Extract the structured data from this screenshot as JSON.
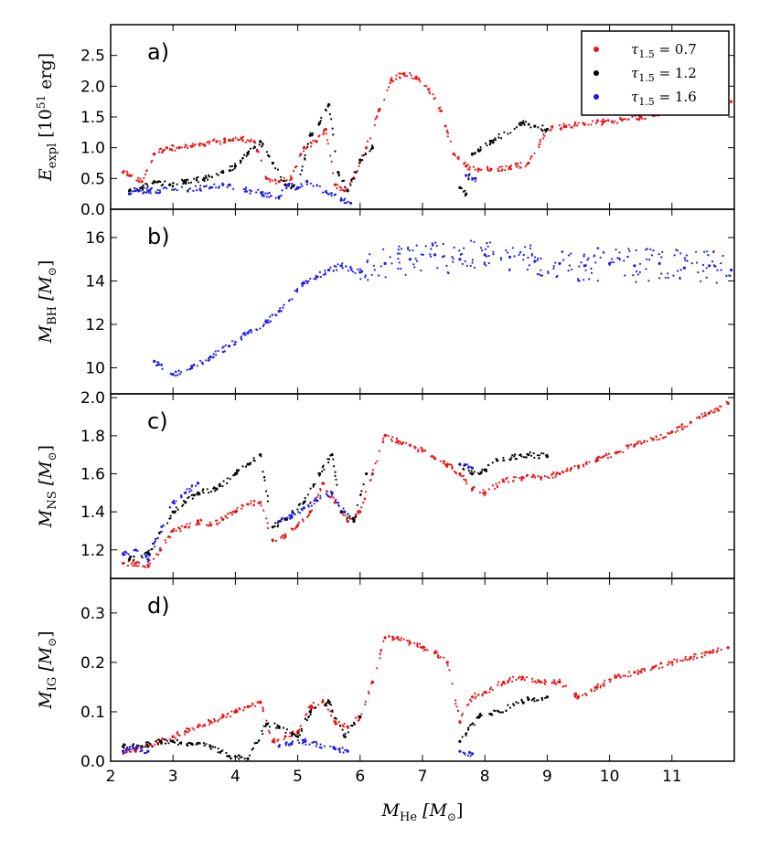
{
  "figure": {
    "x_axis": {
      "label": "M",
      "label_sub": "He",
      "label_unit": "[M",
      "label_unit_sub": "⊙",
      "label_close": "]",
      "range": [
        2,
        12
      ],
      "ticks": [
        2,
        3,
        4,
        5,
        6,
        7,
        8,
        9,
        10,
        11
      ],
      "tick_labels": [
        "2",
        "3",
        "4",
        "5",
        "6",
        "7",
        "8",
        "9",
        "10",
        "11"
      ]
    },
    "legend": {
      "placement": "top-right (panel a)",
      "entries": [
        {
          "name": "τ",
          "sub": "1.5",
          "eq": " = 0.7",
          "color": "#ee1111"
        },
        {
          "name": "τ",
          "sub": "1.5",
          "eq": " = 1.2",
          "color": "#000000"
        },
        {
          "name": "τ",
          "sub": "1.5",
          "eq": " = 1.6",
          "color": "#1a1aee"
        }
      ]
    }
  },
  "chart_data": [
    {
      "type": "scatter",
      "panel_label": "a)",
      "ylabel": "E",
      "ylabel_sub": "expl",
      "ylabel_unit": "[10",
      "ylabel_sup": "51",
      "ylabel_unit2": " erg]",
      "xlim": [
        2,
        12
      ],
      "ylim": [
        0,
        3.0
      ],
      "yticks": [
        0.0,
        0.5,
        1.0,
        1.5,
        2.0,
        2.5
      ],
      "ytick_labels": [
        "0.0",
        "0.5",
        "1.0",
        "1.5",
        "2.0",
        "2.5"
      ],
      "series": [
        {
          "name": "τ1.5 = 0.7",
          "color": "#ee1111",
          "x": [
            2.2,
            2.3,
            2.5,
            2.7,
            2.9,
            3.1,
            3.3,
            3.5,
            3.7,
            3.9,
            4.1,
            4.3,
            4.5,
            4.7,
            4.9,
            5.1,
            5.3,
            5.45,
            5.6,
            5.75,
            5.9,
            6.1,
            6.3,
            6.5,
            6.7,
            6.9,
            7.1,
            7.3,
            7.5,
            7.7,
            7.9,
            8.1,
            8.4,
            8.7,
            9.0,
            9.3,
            9.6,
            9.9,
            10.2,
            10.5,
            10.8,
            11.1,
            11.4,
            11.7,
            11.95
          ],
          "y": [
            0.6,
            0.55,
            0.45,
            0.9,
            1.0,
            1.0,
            1.02,
            1.05,
            1.1,
            1.12,
            1.15,
            1.1,
            0.5,
            0.45,
            0.5,
            1.0,
            1.1,
            1.3,
            0.4,
            0.3,
            0.5,
            1.0,
            1.6,
            2.1,
            2.2,
            2.15,
            1.95,
            1.6,
            0.9,
            0.7,
            0.65,
            0.65,
            0.68,
            0.75,
            1.3,
            1.35,
            1.38,
            1.42,
            1.45,
            1.5,
            1.55,
            1.6,
            1.65,
            1.7,
            1.75
          ]
        },
        {
          "name": "τ1.5 = 1.2",
          "color": "#000000",
          "x": [
            2.3,
            2.5,
            2.7,
            2.95,
            3.2,
            3.5,
            3.8,
            4.0,
            4.2,
            4.4,
            4.6,
            4.8,
            5.0,
            5.2,
            5.35,
            5.5,
            5.65,
            5.8,
            6.0,
            6.2,
            7.6,
            7.7,
            7.8,
            7.9,
            8.1,
            8.6,
            8.8,
            9.0
          ],
          "y": [
            0.3,
            0.35,
            0.45,
            0.4,
            0.45,
            0.5,
            0.6,
            0.7,
            0.9,
            1.1,
            0.75,
            0.4,
            0.35,
            1.2,
            1.4,
            1.7,
            0.6,
            0.3,
            0.8,
            1.0,
            0.35,
            0.25,
            0.9,
            0.95,
            1.1,
            1.4,
            1.35,
            1.3
          ]
        },
        {
          "name": "τ1.5 = 1.6",
          "color": "#1a1aee",
          "x": [
            2.3,
            2.45,
            2.6,
            3.6,
            3.8,
            4.7,
            4.85,
            5.0,
            5.15,
            5.7,
            5.85,
            7.7,
            7.85
          ],
          "y": [
            0.25,
            0.3,
            0.3,
            0.35,
            0.4,
            0.2,
            0.4,
            0.35,
            0.45,
            0.15,
            0.1,
            0.55,
            0.5
          ]
        }
      ]
    },
    {
      "type": "scatter",
      "panel_label": "b)",
      "ylabel": "M",
      "ylabel_sub": "BH",
      "ylabel_unit": "[M",
      "ylabel_unit_sub": "⊙",
      "ylabel_close": "]",
      "xlim": [
        2,
        12
      ],
      "ylim": [
        8.8,
        17.3
      ],
      "yticks": [
        10,
        12,
        14,
        16
      ],
      "ytick_labels": [
        "10",
        "12",
        "14",
        "16"
      ],
      "series": [
        {
          "name": "τ1.5 = 1.6",
          "color": "#1a1aee",
          "x": [
            2.7,
            3.0,
            3.3,
            3.6,
            3.9,
            4.2,
            4.5,
            4.7,
            5.1,
            5.3,
            5.5,
            5.7,
            6.0,
            6.4,
            6.8,
            7.2,
            7.6,
            8.0,
            8.4,
            8.8,
            9.2,
            9.6,
            10.0,
            10.4,
            10.8,
            11.2,
            11.6,
            11.95
          ],
          "y": [
            10.3,
            9.7,
            10.0,
            10.5,
            11.0,
            11.6,
            12.1,
            12.6,
            13.9,
            14.2,
            14.5,
            14.7,
            14.4,
            14.8,
            15.0,
            15.2,
            15.0,
            15.2,
            15.1,
            14.9,
            14.8,
            14.7,
            14.8,
            14.7,
            14.8,
            14.6,
            14.7,
            14.5
          ]
        }
      ]
    },
    {
      "type": "scatter",
      "panel_label": "c)",
      "ylabel": "M",
      "ylabel_sub": "NS",
      "ylabel_unit": "[M",
      "ylabel_unit_sub": "⊙",
      "ylabel_close": "]",
      "xlim": [
        2,
        12
      ],
      "ylim": [
        1.05,
        2.02
      ],
      "yticks": [
        1.2,
        1.4,
        1.6,
        1.8,
        2.0
      ],
      "ytick_labels": [
        "1.2",
        "1.4",
        "1.6",
        "1.8",
        "2.0"
      ],
      "series": [
        {
          "name": "τ1.5 = 0.7",
          "color": "#ee1111",
          "x": [
            2.2,
            2.4,
            2.6,
            2.8,
            3.0,
            3.2,
            3.4,
            3.6,
            3.8,
            4.0,
            4.2,
            4.4,
            4.6,
            4.8,
            5.0,
            5.2,
            5.4,
            5.6,
            5.8,
            6.0,
            6.2,
            6.4,
            6.6,
            6.8,
            7.0,
            7.2,
            7.4,
            7.6,
            7.8,
            8.0,
            8.3,
            8.6,
            8.9,
            9.2,
            9.5,
            9.8,
            10.1,
            10.4,
            10.7,
            11.0,
            11.3,
            11.6,
            11.9
          ],
          "y": [
            1.13,
            1.13,
            1.12,
            1.2,
            1.3,
            1.32,
            1.35,
            1.33,
            1.36,
            1.4,
            1.44,
            1.45,
            1.25,
            1.27,
            1.33,
            1.4,
            1.55,
            1.45,
            1.35,
            1.4,
            1.6,
            1.8,
            1.77,
            1.75,
            1.72,
            1.68,
            1.65,
            1.6,
            1.52,
            1.5,
            1.56,
            1.58,
            1.58,
            1.6,
            1.64,
            1.68,
            1.71,
            1.75,
            1.78,
            1.82,
            1.87,
            1.92,
            1.97
          ]
        },
        {
          "name": "τ1.5 = 1.2",
          "color": "#000000",
          "x": [
            2.3,
            2.6,
            3.0,
            3.2,
            3.4,
            3.7,
            4.0,
            4.2,
            4.4,
            4.6,
            4.8,
            5.1,
            5.35,
            5.55,
            5.7,
            5.9,
            6.1,
            7.6,
            7.8,
            8.0,
            8.2,
            8.7,
            9.0
          ],
          "y": [
            1.15,
            1.18,
            1.4,
            1.45,
            1.5,
            1.52,
            1.6,
            1.65,
            1.7,
            1.32,
            1.36,
            1.45,
            1.6,
            1.7,
            1.4,
            1.35,
            1.6,
            1.65,
            1.6,
            1.62,
            1.67,
            1.7,
            1.69
          ]
        },
        {
          "name": "τ1.5 = 1.6",
          "color": "#1a1aee",
          "x": [
            2.2,
            2.4,
            2.6,
            3.0,
            3.2,
            3.4,
            4.7,
            4.9,
            5.1,
            5.3,
            5.55,
            5.75,
            7.6,
            7.8
          ],
          "y": [
            1.18,
            1.2,
            1.15,
            1.45,
            1.5,
            1.55,
            1.35,
            1.38,
            1.42,
            1.46,
            1.5,
            1.4,
            1.65,
            1.63
          ]
        }
      ]
    },
    {
      "type": "scatter",
      "panel_label": "d)",
      "ylabel": "M",
      "ylabel_sub": "IG",
      "ylabel_unit": "[M",
      "ylabel_unit_sub": "⊙",
      "ylabel_close": "]",
      "xlim": [
        2,
        12
      ],
      "ylim": [
        0,
        0.37
      ],
      "yticks": [
        0.0,
        0.1,
        0.2,
        0.3
      ],
      "ytick_labels": [
        "0.0",
        "0.1",
        "0.2",
        "0.3"
      ],
      "series": [
        {
          "name": "τ1.5 = 0.7",
          "color": "#ee1111",
          "x": [
            2.2,
            2.4,
            2.6,
            2.8,
            3.0,
            3.2,
            3.4,
            3.6,
            3.8,
            4.0,
            4.2,
            4.4,
            4.6,
            4.8,
            5.0,
            5.2,
            5.4,
            5.6,
            5.8,
            6.0,
            6.2,
            6.4,
            6.6,
            6.8,
            7.0,
            7.2,
            7.4,
            7.6,
            7.8,
            8.0,
            8.3,
            8.6,
            8.9,
            9.2,
            9.5,
            9.8,
            10.1,
            10.4,
            10.7,
            11.0,
            11.3,
            11.6,
            11.9
          ],
          "y": [
            0.02,
            0.02,
            0.03,
            0.04,
            0.05,
            0.06,
            0.07,
            0.08,
            0.09,
            0.1,
            0.11,
            0.12,
            0.04,
            0.05,
            0.06,
            0.11,
            0.12,
            0.08,
            0.07,
            0.09,
            0.16,
            0.25,
            0.25,
            0.24,
            0.23,
            0.22,
            0.2,
            0.08,
            0.13,
            0.14,
            0.16,
            0.17,
            0.16,
            0.16,
            0.13,
            0.15,
            0.17,
            0.18,
            0.19,
            0.2,
            0.21,
            0.22,
            0.23
          ]
        },
        {
          "name": "τ1.5 = 1.2",
          "color": "#000000",
          "x": [
            2.2,
            2.5,
            2.8,
            3.0,
            3.3,
            3.6,
            3.9,
            4.2,
            4.5,
            4.7,
            5.0,
            5.2,
            5.5,
            5.75,
            6.0,
            7.6,
            7.9,
            8.1,
            8.7,
            9.0
          ],
          "y": [
            0.03,
            0.03,
            0.04,
            0.04,
            0.035,
            0.03,
            0.01,
            0.005,
            0.075,
            0.07,
            0.05,
            0.1,
            0.12,
            0.05,
            0.09,
            0.04,
            0.09,
            0.095,
            0.125,
            0.13
          ]
        },
        {
          "name": "τ1.5 = 1.6",
          "color": "#1a1aee",
          "x": [
            2.2,
            2.4,
            2.6,
            4.7,
            4.9,
            5.1,
            5.6,
            5.8,
            7.6,
            7.8
          ],
          "y": [
            0.02,
            0.025,
            0.02,
            0.03,
            0.035,
            0.04,
            0.025,
            0.02,
            0.02,
            0.015
          ]
        }
      ]
    }
  ]
}
